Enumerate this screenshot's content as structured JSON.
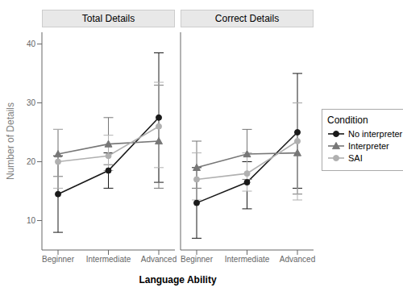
{
  "chart_data": [
    {
      "type": "line",
      "title": "Total Details",
      "x_label": "Language Ability",
      "y_label": "Number of Details",
      "categories": [
        "Beginner",
        "Intermediate",
        "Advanced"
      ],
      "ylim": [
        5,
        42
      ],
      "yticks": [
        10,
        20,
        30,
        40
      ],
      "grid": false,
      "series": [
        {
          "name": "No interpreter",
          "color": "#1a1a1a",
          "marker": "circle",
          "values": [
            14.5,
            18.5,
            27.5
          ],
          "errors": [
            [
              6.5,
              6.5
            ],
            [
              3.0,
              3.0
            ],
            [
              11.0,
              11.0
            ]
          ]
        },
        {
          "name": "Interpreter",
          "color": "#777777",
          "marker": "triangle",
          "values": [
            21.3,
            23.0,
            23.5
          ],
          "errors": [
            [
              3.8,
              4.2
            ],
            [
              3.5,
              4.5
            ],
            [
              8.0,
              9.5
            ]
          ]
        },
        {
          "name": "SAI",
          "color": "#b0b0b0",
          "marker": "circle",
          "values": [
            20.0,
            21.0,
            26.0
          ],
          "errors": [
            [
              4.5,
              5.5
            ],
            [
              2.5,
              3.5
            ],
            [
              7.0,
              7.5
            ]
          ]
        }
      ]
    },
    {
      "type": "line",
      "title": "Correct Details",
      "legend": "right",
      "legend_title": "Condition",
      "categories": [
        "Beginner",
        "Intermediate",
        "Advanced"
      ],
      "ylim": [
        5,
        42
      ],
      "yticks": [
        10,
        20,
        30,
        40
      ],
      "grid": false,
      "series": [
        {
          "name": "No interpreter",
          "color": "#1a1a1a",
          "marker": "circle",
          "values": [
            13.0,
            16.5,
            25.0
          ],
          "errors": [
            [
              6.0,
              6.0
            ],
            [
              4.5,
              3.5
            ],
            [
              9.5,
              10.0
            ]
          ]
        },
        {
          "name": "Interpreter",
          "color": "#777777",
          "marker": "triangle",
          "values": [
            19.0,
            21.3,
            21.5
          ],
          "errors": [
            [
              3.5,
              4.5
            ],
            [
              4.3,
              4.2
            ],
            [
              7.0,
              8.5
            ]
          ]
        },
        {
          "name": "SAI",
          "color": "#b0b0b0",
          "marker": "circle",
          "values": [
            17.0,
            18.0,
            23.5
          ],
          "errors": [
            [
              3.5,
              4.5
            ],
            [
              3.0,
              3.5
            ],
            [
              10.0,
              6.5
            ]
          ]
        }
      ]
    }
  ]
}
